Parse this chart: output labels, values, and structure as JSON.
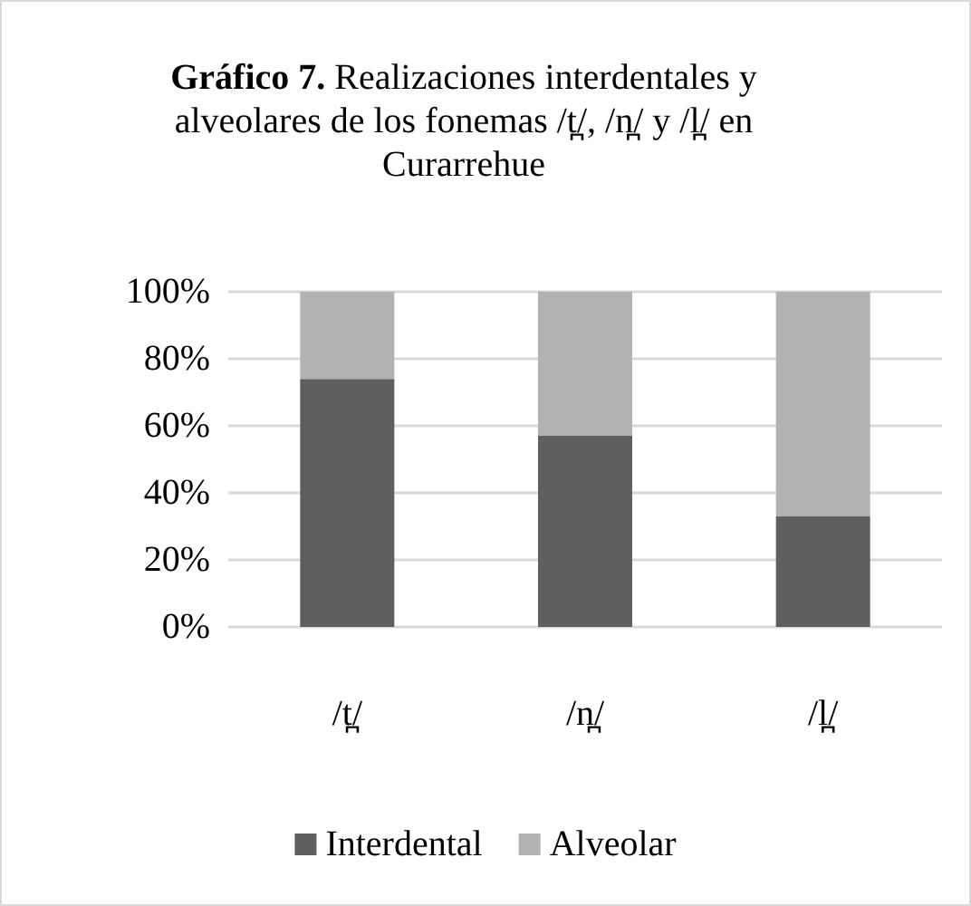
{
  "chart_data": {
    "type": "bar",
    "title": "Gráfico 7. Realizaciones interdentales y alveolares de los fonemas /t̪/, /n̪/ y /l̪/ en Curarrehue",
    "categories": [
      "/t̪/",
      "/n̪/",
      "/l̪/"
    ],
    "stacked": true,
    "series": [
      {
        "name": "Interdental",
        "color": "#5f5f5f",
        "values": [
          74,
          57,
          33
        ]
      },
      {
        "name": "Alveolar",
        "color": "#b2b2b2",
        "values": [
          26,
          43,
          67
        ]
      }
    ],
    "ylim": [
      0,
      100
    ],
    "yticks": [
      {
        "value": 0,
        "label": "0%"
      },
      {
        "value": 20,
        "label": "20%"
      },
      {
        "value": 40,
        "label": "40%"
      },
      {
        "value": 60,
        "label": "60%"
      },
      {
        "value": 80,
        "label": "80%"
      },
      {
        "value": 100,
        "label": "100%"
      }
    ],
    "grid": "y",
    "legend": "bottom"
  }
}
